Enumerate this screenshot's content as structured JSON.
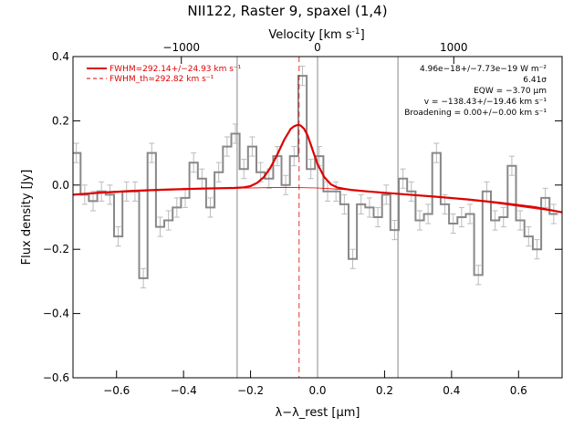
{
  "title": "NII122, Raster 9, spaxel (1,4)",
  "top_axis": {
    "label_main": "Velocity [km s",
    "label_sup": "-1",
    "label_end": "]",
    "ticks": [
      {
        "value": -1000,
        "label": "−1000"
      },
      {
        "value": 0,
        "label": "0"
      },
      {
        "value": 1000,
        "label": "1000"
      }
    ]
  },
  "annotations": {
    "legend_fwhm": "FWHM=292.14+/−24.93 km s⁻¹",
    "legend_fwhm_th": "FWHM_th=292.82 km s⁻¹",
    "flux": "4.96e−18+/−7.73e−19 W m⁻²",
    "sigma": "6.41σ",
    "eqw": "EQW = −3.70 μm",
    "velocity": "v = −138.43+/−19.46 km s⁻¹",
    "broadening": "Broadening = 0.00+/−0.00 km s⁻¹"
  },
  "colors": {
    "data_line": "#888888",
    "fit_line": "#dd0000",
    "axis": "#000000"
  },
  "chart_data": {
    "type": "line",
    "title": "NII122, Raster 9, spaxel (1,4)",
    "xlabel": "λ−λ_rest [μm]",
    "ylabel": "Flux density [Jy]",
    "xlim": [
      -0.73,
      0.73
    ],
    "ylim": [
      -0.6,
      0.4
    ],
    "x_ticks": [
      {
        "value": -0.6,
        "label": "−0.6"
      },
      {
        "value": -0.4,
        "label": "−0.4"
      },
      {
        "value": -0.2,
        "label": "−0.2"
      },
      {
        "value": 0.0,
        "label": "0.0"
      },
      {
        "value": 0.2,
        "label": "0.2"
      },
      {
        "value": 0.4,
        "label": "0.4"
      },
      {
        "value": 0.6,
        "label": "0.6"
      }
    ],
    "y_ticks": [
      {
        "value": 0.4,
        "label": "0.4"
      },
      {
        "value": 0.2,
        "label": "0.2"
      },
      {
        "value": 0.0,
        "label": "0.0"
      },
      {
        "value": -0.2,
        "label": "−0.2"
      },
      {
        "value": -0.4,
        "label": "−0.4"
      },
      {
        "value": -0.6,
        "label": "−0.6"
      }
    ],
    "vertical_lines": [
      -0.24,
      0.0,
      0.24
    ],
    "line_center": -0.055,
    "grid": false,
    "legend_position": "top-left",
    "step_x": [
      -0.72,
      -0.695,
      -0.67,
      -0.645,
      -0.62,
      -0.595,
      -0.57,
      -0.545,
      -0.52,
      -0.495,
      -0.47,
      -0.445,
      -0.42,
      -0.395,
      -0.37,
      -0.345,
      -0.32,
      -0.295,
      -0.27,
      -0.245,
      -0.22,
      -0.195,
      -0.17,
      -0.145,
      -0.12,
      -0.095,
      -0.07,
      -0.045,
      -0.02,
      0.005,
      0.03,
      0.055,
      0.08,
      0.105,
      0.13,
      0.155,
      0.18,
      0.205,
      0.23,
      0.255,
      0.28,
      0.305,
      0.33,
      0.355,
      0.38,
      0.405,
      0.43,
      0.455,
      0.48,
      0.505,
      0.53,
      0.555,
      0.58,
      0.605,
      0.63,
      0.655,
      0.68,
      0.705
    ],
    "step_y": [
      0.1,
      -0.03,
      -0.05,
      -0.02,
      -0.03,
      -0.16,
      -0.02,
      -0.02,
      -0.29,
      0.1,
      -0.13,
      -0.11,
      -0.07,
      -0.04,
      0.07,
      0.02,
      -0.07,
      0.04,
      0.12,
      0.16,
      0.05,
      0.12,
      0.04,
      0.02,
      0.09,
      0.0,
      0.09,
      0.34,
      0.05,
      0.09,
      -0.02,
      -0.02,
      -0.06,
      -0.23,
      -0.06,
      -0.07,
      -0.1,
      -0.03,
      -0.14,
      0.02,
      -0.02,
      -0.11,
      -0.09,
      0.1,
      -0.06,
      -0.12,
      -0.1,
      -0.09,
      -0.28,
      -0.02,
      -0.11,
      -0.1,
      0.06,
      -0.11,
      -0.16,
      -0.2,
      -0.04,
      -0.09
    ],
    "step_err": [
      0.03,
      0.03,
      0.03,
      0.03,
      0.03,
      0.03,
      0.03,
      0.03,
      0.03,
      0.03,
      0.03,
      0.03,
      0.03,
      0.03,
      0.03,
      0.03,
      0.03,
      0.03,
      0.03,
      0.03,
      0.03,
      0.03,
      0.03,
      0.03,
      0.03,
      0.03,
      0.03,
      0.03,
      0.03,
      0.03,
      0.03,
      0.03,
      0.03,
      0.03,
      0.03,
      0.03,
      0.03,
      0.03,
      0.03,
      0.03,
      0.03,
      0.03,
      0.03,
      0.03,
      0.03,
      0.03,
      0.03,
      0.03,
      0.03,
      0.03,
      0.03,
      0.03,
      0.03,
      0.03,
      0.03,
      0.03,
      0.03,
      0.03
    ],
    "fit_x": [
      -0.73,
      -0.65,
      -0.55,
      -0.45,
      -0.35,
      -0.25,
      -0.22,
      -0.2,
      -0.18,
      -0.16,
      -0.14,
      -0.12,
      -0.1,
      -0.08,
      -0.07,
      -0.06,
      -0.055,
      -0.05,
      -0.04,
      -0.03,
      -0.02,
      -0.01,
      0.0,
      0.02,
      0.04,
      0.06,
      0.08,
      0.1,
      0.15,
      0.25,
      0.35,
      0.45,
      0.55,
      0.65,
      0.73
    ],
    "fit_y": [
      -0.03,
      -0.024,
      -0.018,
      -0.014,
      -0.011,
      -0.009,
      -0.007,
      -0.003,
      0.007,
      0.025,
      0.055,
      0.095,
      0.14,
      0.175,
      0.183,
      0.187,
      0.187,
      0.185,
      0.175,
      0.155,
      0.125,
      0.095,
      0.065,
      0.025,
      0.002,
      -0.008,
      -0.012,
      -0.015,
      -0.02,
      -0.028,
      -0.036,
      -0.045,
      -0.056,
      -0.069,
      -0.085
    ],
    "continuum_x": [
      -0.73,
      -0.5,
      -0.3,
      -0.1,
      0.0,
      0.1,
      0.3,
      0.5,
      0.73
    ],
    "continuum_y": [
      -0.03,
      -0.018,
      -0.011,
      -0.007,
      -0.009,
      -0.015,
      -0.031,
      -0.052,
      -0.085
    ]
  }
}
